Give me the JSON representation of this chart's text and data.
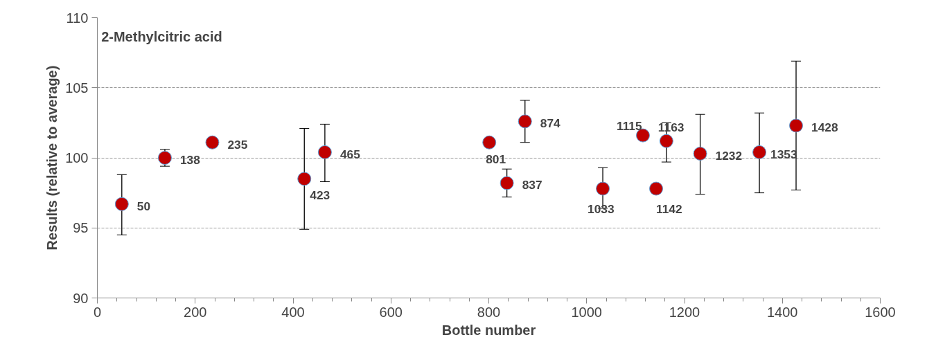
{
  "chart_data": {
    "type": "scatter",
    "title": "2-Methylcitric acid",
    "xlabel": "Bottle number",
    "ylabel": "Results (relative to average)",
    "x": [
      50,
      138,
      235,
      423,
      465,
      801,
      837,
      874,
      1033,
      1115,
      1142,
      1163,
      1232,
      1353,
      1428
    ],
    "series": [
      {
        "color": "#c00000",
        "values": [
          96.7,
          100.0,
          101.1,
          98.5,
          100.4,
          101.1,
          98.2,
          102.6,
          97.8,
          101.6,
          97.8,
          101.2,
          100.3,
          100.4,
          102.3
        ],
        "errors": [
          [
            94.5,
            98.8
          ],
          [
            99.4,
            100.6
          ],
          null,
          [
            94.9,
            102.1
          ],
          [
            98.3,
            102.4
          ],
          null,
          [
            97.2,
            99.2
          ],
          [
            101.1,
            104.1
          ],
          [
            96.4,
            99.3
          ],
          null,
          null,
          [
            99.7,
            102.5
          ],
          [
            97.4,
            103.1
          ],
          [
            97.5,
            103.2
          ],
          [
            97.7,
            106.9
          ]
        ]
      }
    ],
    "annotations": [
      {
        "text": "50",
        "x": 50,
        "y": 96.7
      },
      {
        "text": "138",
        "x": 138,
        "y": 100.0
      },
      {
        "text": "235",
        "x": 235,
        "y": 101.1
      },
      {
        "text": "423",
        "x": 423,
        "y": 98.5
      },
      {
        "text": "465",
        "x": 465,
        "y": 100.4
      },
      {
        "text": "801",
        "x": 801,
        "y": 101.1
      },
      {
        "text": "837",
        "x": 837,
        "y": 98.2
      },
      {
        "text": "874",
        "x": 874,
        "y": 102.6
      },
      {
        "text": "1033",
        "x": 1033,
        "y": 97.8
      },
      {
        "text": "1115",
        "x": 1115,
        "y": 101.6
      },
      {
        "text": "1142",
        "x": 1142,
        "y": 97.8
      },
      {
        "text": "1163",
        "x": 1163,
        "y": 101.2
      },
      {
        "text": "1232",
        "x": 1232,
        "y": 100.3
      },
      {
        "text": "1353",
        "x": 1353,
        "y": 100.4
      },
      {
        "text": "1428",
        "x": 1428,
        "y": 102.3
      }
    ],
    "xlim": [
      0,
      1600
    ],
    "xticks": [
      0,
      200,
      400,
      600,
      800,
      1000,
      1200,
      1400,
      1600
    ],
    "ylim": [
      90,
      110
    ],
    "yticks": [
      90,
      95,
      100,
      105,
      110
    ],
    "grid": "y",
    "marker": "circle"
  }
}
